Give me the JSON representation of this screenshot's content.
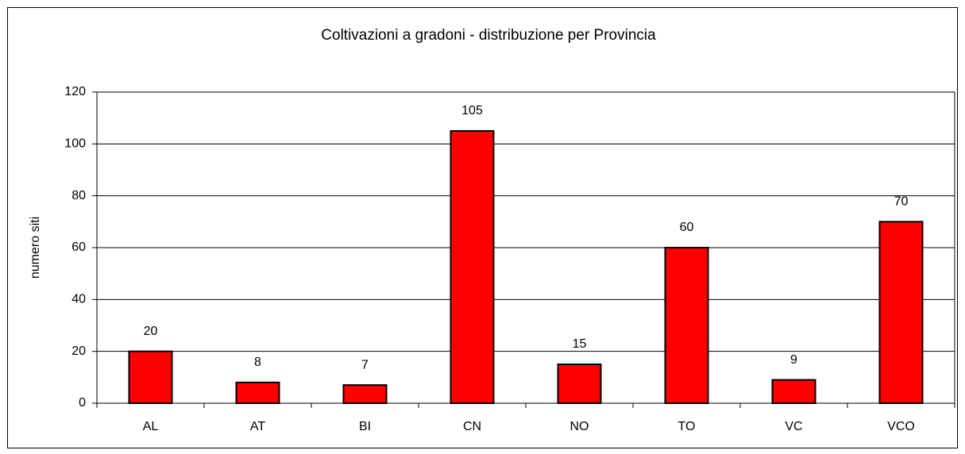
{
  "chart_data": {
    "type": "bar",
    "title": "Coltivazioni a gradoni - distribuzione per Provincia",
    "y_label": "numero siti",
    "categories": [
      "AL",
      "AT",
      "BI",
      "CN",
      "NO",
      "TO",
      "VC",
      "VCO"
    ],
    "values": [
      20,
      8,
      7,
      105,
      15,
      60,
      9,
      70
    ],
    "color": "#ff0000",
    "ylim": [
      0,
      120
    ],
    "yticks": [
      0,
      20,
      40,
      60,
      80,
      100,
      120
    ],
    "grid": true
  }
}
